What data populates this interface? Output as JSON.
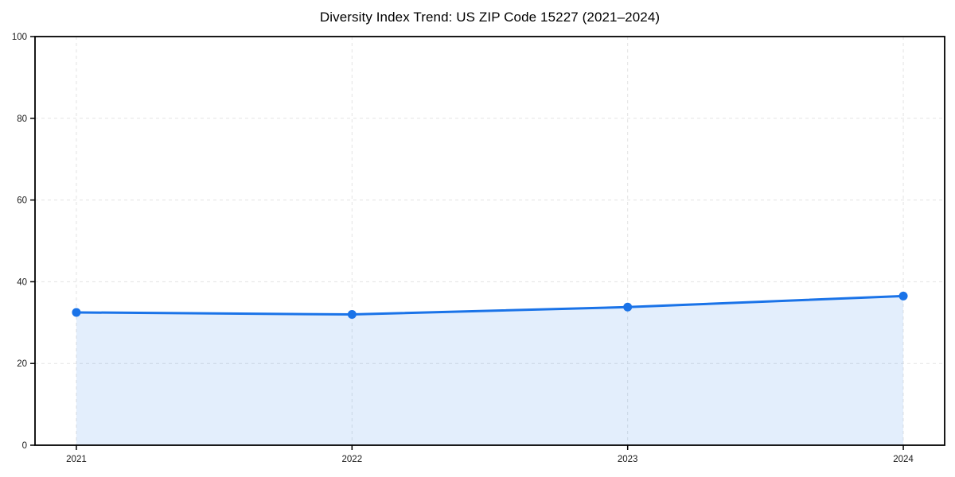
{
  "chart_data": {
    "type": "line",
    "title": "Diversity Index Trend: US ZIP Code 15227 (2021–2024)",
    "x": [
      2021,
      2022,
      2023,
      2024
    ],
    "series": [
      {
        "name": "Diversity Index",
        "values": [
          32.5,
          32.0,
          33.8,
          36.5
        ]
      }
    ],
    "xticks": [
      2021,
      2022,
      2023,
      2024
    ],
    "yticks": [
      0,
      20,
      40,
      60,
      80,
      100
    ],
    "xlabel": "",
    "ylabel": "",
    "ylim": [
      0,
      100
    ],
    "grid": true,
    "grid_style": "dashed",
    "legend": false,
    "area_fill": true,
    "colors": {
      "line": "#1a73e8",
      "marker": "#1a73e8",
      "fill": "rgba(26,115,232,0.12)",
      "grid": "#e3e3e3",
      "spine": "#000000",
      "tick_label": "#1a1a1a",
      "background": "#ffffff"
    }
  }
}
